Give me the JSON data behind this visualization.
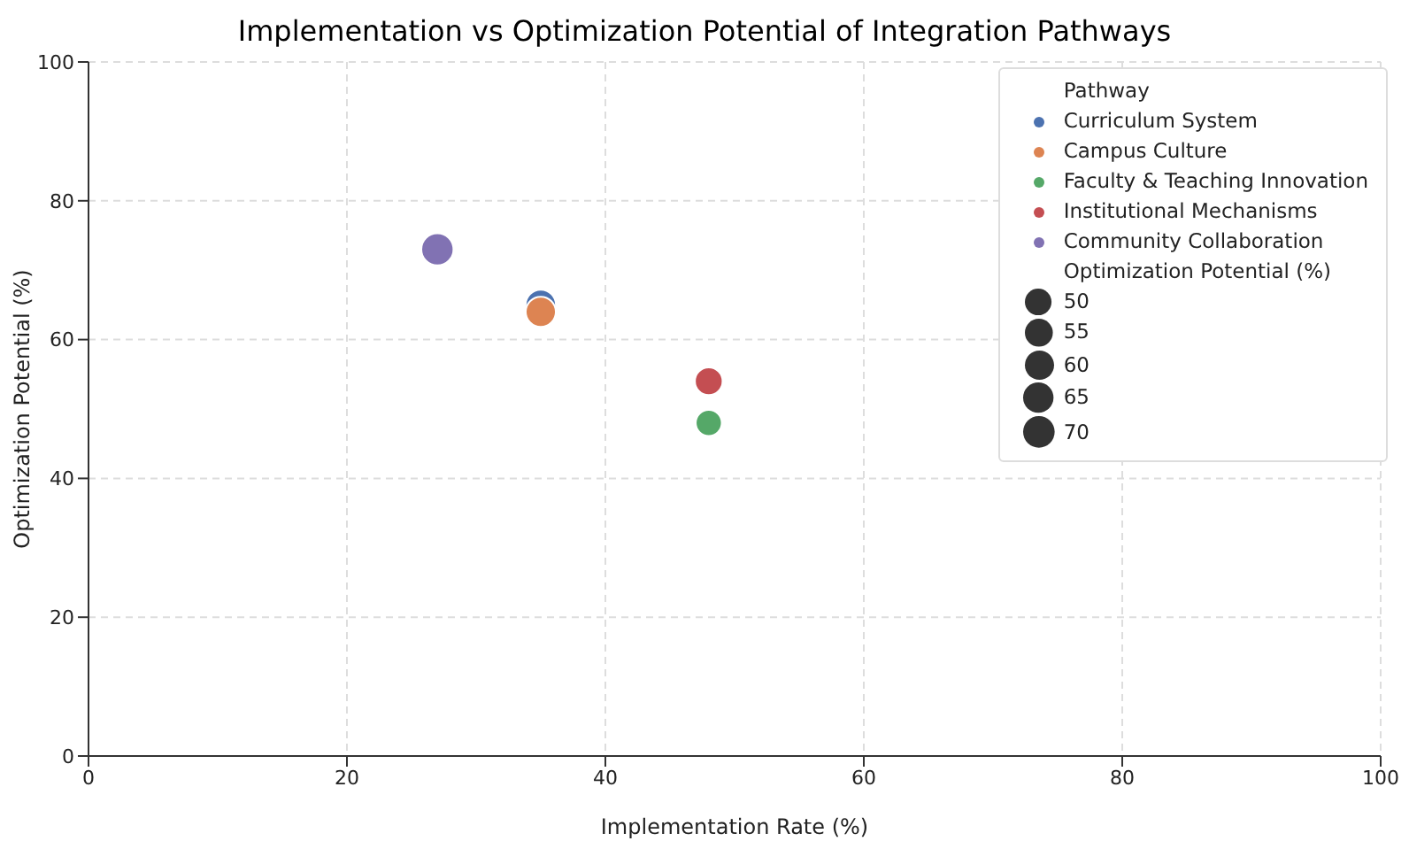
{
  "chart_data": {
    "type": "bubble",
    "title": "Implementation vs Optimization Potential of Integration Pathways",
    "xlabel": "Implementation Rate (%)",
    "ylabel": "Optimization Potential (%)",
    "legend_title": "Pathway",
    "xlim": [
      0,
      100
    ],
    "xticks": [
      0,
      20,
      40,
      60,
      80,
      100
    ],
    "ylim": [
      0,
      100
    ],
    "yticks": [
      0,
      20,
      40,
      60,
      80,
      100
    ],
    "grid": true,
    "legend": "top right",
    "size_legend": [
      50,
      55,
      60,
      65,
      70
    ],
    "series": [
      {
        "name": "Curriculum System",
        "color": "#4c72b0",
        "x": [
          35
        ],
        "values": [
          65
        ],
        "sizes": [
          65
        ]
      },
      {
        "name": "Campus Culture",
        "color": "#dd8452",
        "x": [
          35
        ],
        "values": [
          64
        ],
        "sizes": [
          64
        ]
      },
      {
        "name": "Faculty & Teaching Innovation",
        "color": "#55a868",
        "x": [
          48
        ],
        "values": [
          48
        ],
        "sizes": [
          48
        ]
      },
      {
        "name": "Institutional Mechanisms",
        "color": "#c44e52",
        "x": [
          48
        ],
        "values": [
          54
        ],
        "sizes": [
          54
        ]
      },
      {
        "name": "Community Collaboration",
        "color": "#8172b3",
        "x": [
          27
        ],
        "values": [
          73
        ],
        "sizes": [
          73
        ]
      }
    ]
  }
}
